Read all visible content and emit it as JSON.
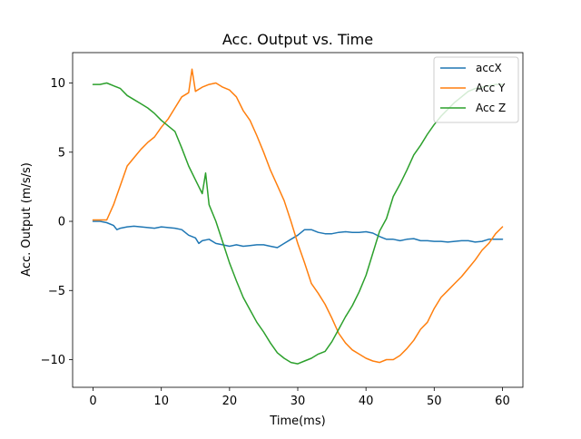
{
  "chart_data": {
    "type": "line",
    "title": "Acc. Output vs. Time",
    "xlabel": "Time(ms)",
    "ylabel": "Acc. Output (m/s/s)",
    "xlim": [
      -3,
      63
    ],
    "ylim": [
      -12,
      12.2
    ],
    "x_ticks": [
      0,
      10,
      20,
      30,
      40,
      50,
      60
    ],
    "y_ticks": [
      -10,
      -5,
      0,
      5,
      10
    ],
    "x_tick_labels": [
      "0",
      "10",
      "20",
      "30",
      "40",
      "50",
      "60"
    ],
    "y_tick_labels": [
      "−10",
      "−5",
      "0",
      "5",
      "10"
    ],
    "grid": false,
    "legend_position": "top-right",
    "series": [
      {
        "name": "accX",
        "color": "#1f77b4",
        "x": [
          0,
          1,
          2,
          3,
          3.5,
          4,
          5,
          6,
          7,
          8,
          9,
          10,
          11,
          12,
          13,
          14,
          15,
          15.5,
          16,
          17,
          18,
          19,
          20,
          21,
          22,
          23,
          24,
          25,
          26,
          27,
          28,
          29,
          30,
          31,
          32,
          33,
          34,
          35,
          36,
          37,
          38,
          39,
          40,
          41,
          42,
          43,
          44,
          45,
          46,
          47,
          48,
          49,
          50,
          51,
          52,
          53,
          54,
          55,
          56,
          57,
          58,
          59,
          60
        ],
        "values": [
          0.0,
          0.0,
          -0.1,
          -0.3,
          -0.6,
          -0.5,
          -0.4,
          -0.35,
          -0.4,
          -0.45,
          -0.5,
          -0.4,
          -0.45,
          -0.5,
          -0.6,
          -1.0,
          -1.2,
          -1.6,
          -1.4,
          -1.3,
          -1.6,
          -1.7,
          -1.8,
          -1.7,
          -1.8,
          -1.75,
          -1.7,
          -1.7,
          -1.8,
          -1.9,
          -1.6,
          -1.3,
          -1.0,
          -0.6,
          -0.6,
          -0.8,
          -0.9,
          -0.9,
          -0.8,
          -0.75,
          -0.8,
          -0.8,
          -0.75,
          -0.85,
          -1.1,
          -1.3,
          -1.3,
          -1.4,
          -1.3,
          -1.25,
          -1.4,
          -1.4,
          -1.45,
          -1.45,
          -1.5,
          -1.45,
          -1.4,
          -1.4,
          -1.5,
          -1.45,
          -1.3,
          -1.3,
          -1.3
        ]
      },
      {
        "name": "Acc Y",
        "color": "#ff7f0e",
        "x": [
          0,
          1,
          2,
          3,
          4,
          5,
          6,
          7,
          8,
          9,
          10,
          11,
          12,
          13,
          14,
          14.5,
          15,
          16,
          17,
          18,
          19,
          20,
          21,
          22,
          23,
          24,
          25,
          26,
          27,
          28,
          29,
          30,
          31,
          32,
          33,
          34,
          35,
          36,
          37,
          38,
          39,
          40,
          41,
          42,
          43,
          44,
          45,
          46,
          47,
          48,
          49,
          50,
          51,
          52,
          53,
          54,
          55,
          56,
          57,
          58,
          59,
          60
        ],
        "values": [
          0.1,
          0.1,
          0.1,
          1.2,
          2.6,
          4.0,
          4.6,
          5.2,
          5.7,
          6.1,
          6.8,
          7.4,
          8.2,
          9.0,
          9.3,
          11.0,
          9.4,
          9.7,
          9.9,
          10.0,
          9.7,
          9.5,
          9.0,
          8.0,
          7.3,
          6.2,
          5.0,
          3.7,
          2.6,
          1.5,
          0.0,
          -1.6,
          -3.0,
          -4.5,
          -5.2,
          -6.0,
          -7.0,
          -8.1,
          -8.8,
          -9.3,
          -9.6,
          -9.9,
          -10.1,
          -10.2,
          -10.0,
          -10.0,
          -9.7,
          -9.2,
          -8.6,
          -7.8,
          -7.3,
          -6.3,
          -5.5,
          -5.0,
          -4.5,
          -4.0,
          -3.4,
          -2.8,
          -2.1,
          -1.6,
          -0.9,
          -0.4
        ]
      },
      {
        "name": "Acc Z",
        "color": "#2ca02c",
        "x": [
          0,
          1,
          2,
          3,
          4,
          5,
          6,
          7,
          8,
          9,
          10,
          11,
          12,
          13,
          14,
          15,
          16,
          16.5,
          17,
          18,
          19,
          20,
          21,
          22,
          23,
          24,
          25,
          26,
          27,
          28,
          29,
          30,
          31,
          32,
          33,
          34,
          35,
          36,
          37,
          38,
          39,
          40,
          41,
          42,
          43,
          44,
          45,
          46,
          47,
          48,
          49,
          50,
          51,
          52,
          53,
          54,
          55,
          56,
          57,
          58,
          59,
          60
        ],
        "values": [
          9.9,
          9.9,
          10.0,
          9.8,
          9.6,
          9.1,
          8.8,
          8.5,
          8.2,
          7.8,
          7.3,
          6.9,
          6.5,
          5.3,
          4.0,
          3.0,
          2.0,
          3.5,
          1.2,
          0.0,
          -1.5,
          -3.0,
          -4.3,
          -5.5,
          -6.4,
          -7.3,
          -8.0,
          -8.8,
          -9.5,
          -9.9,
          -10.2,
          -10.3,
          -10.1,
          -9.9,
          -9.6,
          -9.4,
          -8.7,
          -7.8,
          -6.9,
          -6.1,
          -5.1,
          -3.9,
          -2.3,
          -0.7,
          0.2,
          1.8,
          2.7,
          3.7,
          4.8,
          5.5,
          6.3,
          7.0,
          7.6,
          8.1,
          8.6,
          9.0,
          9.4,
          9.6,
          9.7,
          9.8,
          9.9,
          9.9
        ]
      }
    ]
  }
}
